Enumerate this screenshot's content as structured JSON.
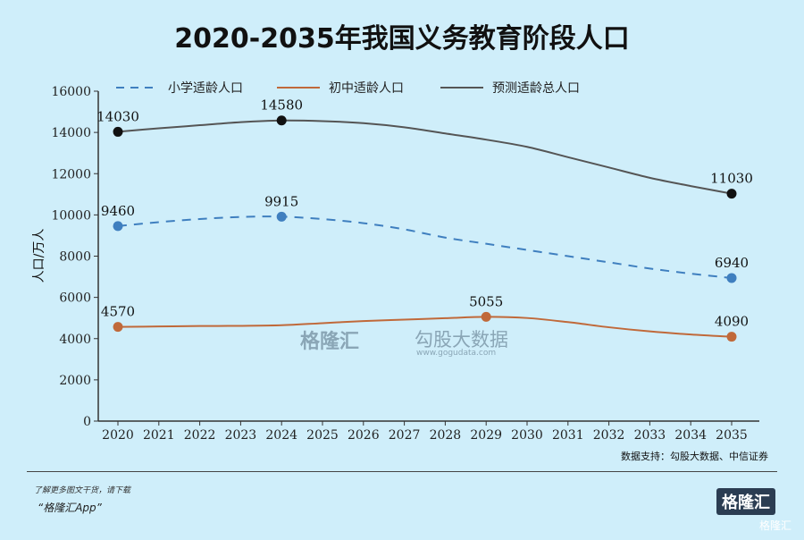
{
  "title": "2020-2035年我国义务教育阶段人口",
  "ylabel": "人口/万人",
  "source": "数据支持：勾股大数据、中信证券",
  "app_note": "了解更多图文干货，请下载",
  "app_name": "“格隆汇App”",
  "watermark": {
    "brand": "格隆汇",
    "data": "勾股大数据",
    "site": "www.gogudata.com"
  },
  "corner_brand": "格隆汇",
  "footer_brand": "格隆汇",
  "chart_data": {
    "type": "line",
    "title": "2020-2035年我国义务教育阶段人口",
    "ylabel": "人口/万人",
    "xlabel": "",
    "ylim": [
      0,
      16000
    ],
    "yticks": [
      0,
      2000,
      4000,
      6000,
      8000,
      10000,
      12000,
      14000,
      16000
    ],
    "categories": [
      "2020",
      "2021",
      "2022",
      "2023",
      "2024",
      "2025",
      "2026",
      "2027",
      "2028",
      "2029",
      "2030",
      "2031",
      "2032",
      "2033",
      "2034",
      "2035"
    ],
    "legend_position": "top",
    "series": [
      {
        "name": "小学适龄人口",
        "style": "dashed",
        "color": "#3f7fbf",
        "values": [
          9460,
          9650,
          9800,
          9900,
          9915,
          9800,
          9600,
          9300,
          8900,
          8600,
          8300,
          8000,
          7700,
          7400,
          7150,
          6940
        ],
        "labels": [
          {
            "year": "2020",
            "value": "9460"
          },
          {
            "year": "2024",
            "value": "9915"
          },
          {
            "year": "2035",
            "value": "6940"
          }
        ]
      },
      {
        "name": "初中适龄人口",
        "style": "solid",
        "color": "#c0693a",
        "values": [
          4570,
          4590,
          4610,
          4620,
          4650,
          4750,
          4850,
          4920,
          4990,
          5055,
          5000,
          4800,
          4550,
          4350,
          4200,
          4090
        ],
        "labels": [
          {
            "year": "2020",
            "value": "4570"
          },
          {
            "year": "2029",
            "value": "5055"
          },
          {
            "year": "2035",
            "value": "4090"
          }
        ]
      },
      {
        "name": "预测适龄总人口",
        "style": "solid",
        "color": "#555555",
        "values": [
          14030,
          14200,
          14350,
          14500,
          14580,
          14550,
          14450,
          14250,
          13950,
          13650,
          13300,
          12800,
          12300,
          11800,
          11400,
          11030
        ],
        "labels": [
          {
            "year": "2020",
            "value": "14030"
          },
          {
            "year": "2024",
            "value": "14580"
          },
          {
            "year": "2035",
            "value": "11030"
          }
        ]
      }
    ]
  }
}
